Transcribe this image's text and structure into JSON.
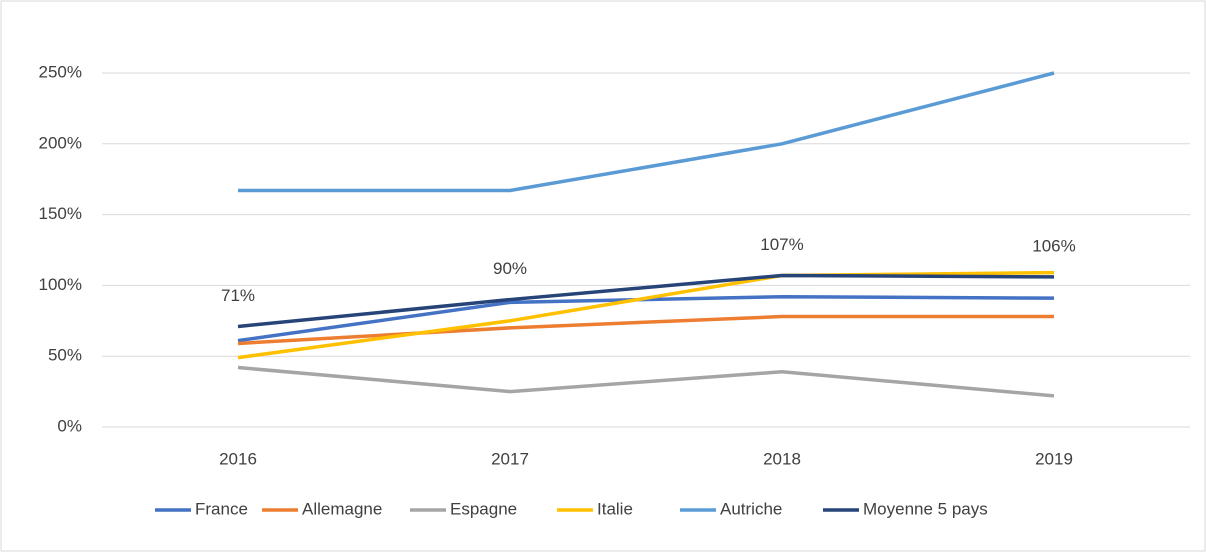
{
  "chart_data": {
    "type": "line",
    "categories": [
      "2016",
      "2017",
      "2018",
      "2019"
    ],
    "series": [
      {
        "name": "France",
        "color": "#4472c4",
        "values": [
          61,
          88,
          92,
          91
        ]
      },
      {
        "name": "Allemagne",
        "color": "#ed7d31",
        "values": [
          59,
          70,
          78,
          78
        ]
      },
      {
        "name": "Espagne",
        "color": "#a5a5a5",
        "values": [
          42,
          25,
          39,
          22
        ]
      },
      {
        "name": "Italie",
        "color": "#ffc000",
        "values": [
          49,
          75,
          107,
          109
        ]
      },
      {
        "name": "Autriche",
        "color": "#5b9bd5",
        "values": [
          167,
          167,
          200,
          250
        ]
      },
      {
        "name": "Moyenne 5 pays",
        "color": "#264478",
        "values": [
          71,
          90,
          107,
          106
        ],
        "value_labels": [
          "71%",
          "90%",
          "107%",
          "106%"
        ]
      }
    ],
    "ylim": [
      0,
      250
    ],
    "yticks": [
      {
        "value": 0,
        "label": "0%"
      },
      {
        "value": 50,
        "label": "50%"
      },
      {
        "value": 100,
        "label": "100%"
      },
      {
        "value": 150,
        "label": "150%"
      },
      {
        "value": 200,
        "label": "200%"
      },
      {
        "value": 250,
        "label": "250%"
      }
    ],
    "grid": true,
    "legend": "bottom"
  }
}
